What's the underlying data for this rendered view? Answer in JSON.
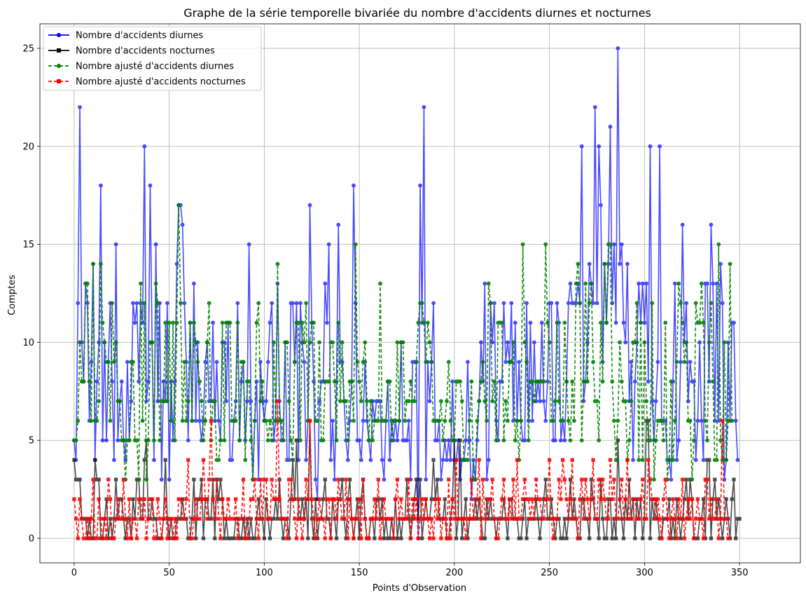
{
  "chart_data": {
    "type": "line",
    "title": "Graphe de la série temporelle bivariée du nombre d'accidents diurnes et nocturnes",
    "xlabel": "Points d'Observation",
    "ylabel": "Comptes",
    "xlim": [
      -18,
      382
    ],
    "ylim": [
      -1.25,
      26.25
    ],
    "xticks": [
      0,
      50,
      100,
      150,
      200,
      250,
      300,
      350
    ],
    "yticks": [
      0,
      5,
      10,
      15,
      20,
      25
    ],
    "grid": true,
    "legend_position": "top-left",
    "series": [
      {
        "name": "Nombre d'accidents diurnes",
        "color": "#0000ff",
        "marker": "circle",
        "dash": "solid",
        "alpha": 0.7,
        "values": [
          5,
          4,
          12,
          22,
          10,
          8,
          13,
          12,
          6,
          9,
          14,
          4,
          8,
          10,
          18,
          5,
          10,
          5,
          9,
          12,
          8,
          4,
          15,
          5,
          7,
          8,
          5,
          4,
          9,
          5,
          7,
          12,
          11,
          12,
          8,
          12,
          11,
          20,
          7,
          8,
          18,
          10,
          4,
          15,
          7,
          12,
          3,
          8,
          7,
          12,
          3,
          8,
          5,
          8,
          14,
          17,
          17,
          16,
          12,
          9,
          5,
          11,
          6,
          13,
          6,
          10,
          6,
          5,
          6,
          9,
          10,
          7,
          7,
          11,
          6,
          9,
          6,
          5,
          10,
          10,
          7,
          11,
          4,
          4,
          6,
          7,
          12,
          5,
          8,
          9,
          5,
          7,
          15,
          7,
          3,
          6,
          8,
          3,
          9,
          7,
          6,
          7,
          9,
          11,
          12,
          5,
          6,
          13,
          7,
          5,
          5,
          10,
          4,
          4,
          12,
          12,
          9,
          12,
          4,
          12,
          10,
          9,
          4,
          6,
          17,
          11,
          8,
          3,
          2,
          7,
          8,
          8,
          13,
          11,
          15,
          4,
          6,
          3,
          8,
          16,
          9,
          9,
          7,
          5,
          4,
          6,
          8,
          18,
          12,
          5,
          5,
          4,
          6,
          9,
          6,
          5,
          4,
          7,
          6,
          7,
          7,
          7,
          4,
          3,
          6,
          8,
          4,
          6,
          5,
          6,
          5,
          6,
          10,
          5,
          5,
          5,
          6,
          3,
          9,
          9,
          9,
          0,
          18,
          11,
          22,
          3,
          9,
          7,
          9,
          12,
          5,
          5,
          6,
          3,
          4,
          5,
          4,
          5,
          4,
          8,
          4,
          4,
          5,
          3,
          4,
          4,
          5,
          9,
          5,
          2,
          4,
          3,
          5,
          7,
          10,
          8,
          13,
          3,
          4,
          12,
          10,
          12,
          6,
          5,
          8,
          8,
          12,
          9,
          10,
          9,
          12,
          6,
          11,
          6,
          9,
          6,
          5,
          5,
          12,
          6,
          11,
          6,
          10,
          7,
          8,
          7,
          11,
          7,
          6,
          8,
          12,
          12,
          5,
          5,
          12,
          11,
          5,
          6,
          5,
          8,
          12,
          13,
          12,
          12,
          12,
          13,
          12,
          20,
          7,
          8,
          10,
          14,
          13,
          12,
          22,
          12,
          20,
          17,
          9,
          14,
          11,
          14,
          21,
          12,
          15,
          11,
          25,
          14,
          15,
          11,
          10,
          14,
          7,
          9,
          4,
          8,
          10,
          13,
          11,
          13,
          11,
          13,
          8,
          20,
          7,
          5,
          7,
          9,
          20,
          6,
          6,
          6,
          4,
          4,
          3,
          8,
          13,
          4,
          5,
          9,
          16,
          10,
          12,
          7,
          9,
          8,
          8,
          4,
          6,
          10,
          6,
          4,
          13,
          13,
          8,
          16,
          13,
          6,
          13,
          6,
          14,
          12,
          3,
          4,
          10,
          6,
          11,
          11,
          6,
          4
        ]
      },
      {
        "name": "Nombre d'accidents nocturnes",
        "color": "#000000",
        "marker": "square",
        "dash": "solid",
        "alpha": 0.7,
        "values": [
          4,
          3,
          3,
          3,
          1,
          1,
          1,
          0,
          1,
          0,
          0,
          4,
          3,
          3,
          0,
          0,
          1,
          2,
          0,
          1,
          0,
          1,
          3,
          1,
          2,
          2,
          1,
          0,
          1,
          1,
          0,
          2,
          1,
          3,
          3,
          1,
          1,
          4,
          5,
          1,
          1,
          2,
          1,
          1,
          0,
          0,
          0,
          1,
          4,
          1,
          0,
          1,
          0,
          0,
          1,
          1,
          1,
          2,
          1,
          1,
          0,
          0,
          1,
          3,
          0,
          2,
          2,
          3,
          0,
          2,
          2,
          1,
          1,
          3,
          0,
          3,
          2,
          3,
          2,
          0,
          1,
          0,
          0,
          0,
          0,
          1,
          1,
          0,
          0,
          1,
          0,
          1,
          0,
          1,
          0,
          0,
          1,
          2,
          1,
          1,
          0,
          2,
          1,
          0,
          1,
          1,
          2,
          1,
          3,
          1,
          0,
          1,
          1,
          0,
          2,
          4,
          2,
          5,
          1,
          1,
          2,
          1,
          2,
          0,
          6,
          1,
          0,
          2,
          0,
          1,
          1,
          2,
          3,
          1,
          1,
          0,
          2,
          1,
          0,
          2,
          2,
          3,
          1,
          0,
          2,
          3,
          1,
          0,
          1,
          2,
          0,
          2,
          3,
          1,
          0,
          0,
          1,
          1,
          0,
          2,
          2,
          1,
          2,
          0,
          1,
          0,
          0,
          1,
          0,
          2,
          0,
          1,
          0,
          1,
          1,
          3,
          1,
          0,
          1,
          2,
          3,
          1,
          3,
          0,
          1,
          2,
          1,
          1,
          2,
          4,
          2,
          3,
          1,
          1,
          1,
          2,
          0,
          0,
          1,
          2,
          5,
          0,
          1,
          5,
          0,
          1,
          2,
          0,
          1,
          1,
          1,
          2,
          1,
          2,
          1,
          0,
          0,
          2,
          1,
          2,
          1,
          1,
          0,
          1,
          1,
          1,
          2,
          1,
          0,
          2,
          2,
          1,
          1,
          1,
          0,
          0,
          1,
          2,
          0,
          1,
          1,
          1,
          1,
          2,
          1,
          0,
          1,
          2,
          3,
          1,
          1,
          2,
          1,
          0,
          1,
          1,
          0,
          0,
          1,
          0,
          1,
          3,
          1,
          2,
          1,
          0,
          0,
          2,
          2,
          1,
          1,
          0,
          3,
          2,
          1,
          1,
          0,
          3,
          1,
          0,
          0,
          2,
          2,
          0,
          1,
          0,
          5,
          2,
          1,
          0,
          2,
          1,
          3,
          1,
          2,
          0,
          2,
          1,
          2,
          0,
          1,
          6,
          6,
          0,
          2,
          1,
          2,
          1,
          0,
          0,
          1,
          1,
          1,
          2,
          0,
          1,
          0,
          2,
          1,
          0,
          1,
          2,
          3,
          1,
          3,
          2,
          0,
          0,
          0,
          1,
          1,
          2,
          0,
          4,
          4,
          0,
          2,
          3,
          1,
          2,
          1,
          0,
          1,
          2,
          1,
          0,
          2,
          3,
          0,
          1,
          1
        ]
      },
      {
        "name": "Nombre ajusté d'accidents diurnes",
        "color": "#008000",
        "marker": "circle",
        "dash": "dashed",
        "alpha": 0.9,
        "values": [
          5,
          5,
          6,
          10,
          8,
          8,
          13,
          13,
          8,
          6,
          14,
          6,
          6,
          7,
          14,
          11,
          10,
          9,
          9,
          6,
          12,
          9,
          10,
          7,
          7,
          5,
          5,
          3,
          5,
          5,
          9,
          9,
          5,
          5,
          3,
          13,
          6,
          12,
          3,
          5,
          10,
          10,
          5,
          13,
          12,
          5,
          7,
          7,
          11,
          7,
          11,
          6,
          11,
          5,
          11,
          17,
          12,
          6,
          9,
          6,
          7,
          11,
          6,
          11,
          10,
          9,
          8,
          7,
          5,
          6,
          10,
          12,
          5,
          7,
          7,
          4,
          4,
          5,
          11,
          5,
          11,
          11,
          11,
          6,
          6,
          6,
          11,
          5,
          9,
          9,
          4,
          8,
          8,
          5,
          3,
          6,
          11,
          12,
          7,
          8,
          6,
          6,
          5,
          6,
          5,
          10,
          6,
          14,
          6,
          6,
          5,
          10,
          10,
          7,
          5,
          4,
          9,
          11,
          11,
          5,
          11,
          10,
          12,
          6,
          10,
          11,
          11,
          6,
          6,
          10,
          5,
          5,
          8,
          8,
          8,
          10,
          10,
          8,
          5,
          11,
          7,
          10,
          7,
          7,
          5,
          8,
          8,
          6,
          15,
          9,
          8,
          7,
          9,
          10,
          7,
          5,
          7,
          5,
          6,
          6,
          6,
          13,
          6,
          6,
          6,
          8,
          8,
          5,
          6,
          6,
          10,
          6,
          10,
          10,
          6,
          7,
          7,
          8,
          7,
          7,
          9,
          11,
          12,
          12,
          11,
          9,
          11,
          10,
          9,
          6,
          6,
          6,
          6,
          7,
          5,
          6,
          7,
          9,
          6,
          5,
          5,
          8,
          8,
          8,
          7,
          4,
          4,
          4,
          6,
          8,
          3,
          3,
          6,
          7,
          8,
          9,
          7,
          6,
          13,
          12,
          7,
          8,
          5,
          11,
          11,
          11,
          5,
          7,
          6,
          9,
          9,
          10,
          5,
          6,
          4,
          6,
          15,
          10,
          9,
          5,
          8,
          8,
          7,
          8,
          8,
          8,
          8,
          8,
          15,
          11,
          10,
          6,
          6,
          7,
          11,
          7,
          6,
          6,
          11,
          8,
          6,
          5,
          8,
          6,
          13,
          14,
          12,
          5,
          8,
          13,
          8,
          12,
          13,
          9,
          7,
          7,
          5,
          11,
          8,
          14,
          11,
          15,
          15,
          8,
          6,
          4,
          6,
          10,
          8,
          7,
          7,
          4,
          5,
          7,
          10,
          10,
          12,
          4,
          11,
          4,
          10,
          7,
          5,
          5,
          12,
          3,
          5,
          6,
          6,
          6,
          5,
          11,
          3,
          4,
          8,
          4,
          6,
          9,
          13,
          12,
          11,
          9,
          10,
          6,
          6,
          3,
          5,
          12,
          11,
          11,
          13,
          11,
          6,
          5,
          10,
          12,
          8,
          4,
          4,
          15,
          5,
          4,
          10,
          4,
          6,
          14,
          6
        ]
      },
      {
        "name": "Nombre ajusté d'accidents nocturnes",
        "color": "#ff0000",
        "marker": "square",
        "dash": "dashed",
        "alpha": 0.9,
        "values": [
          2,
          1,
          0,
          2,
          1,
          0,
          0,
          1,
          0,
          1,
          3,
          0,
          0,
          2,
          1,
          0,
          1,
          0,
          3,
          2,
          0,
          0,
          1,
          2,
          1,
          1,
          3,
          1,
          0,
          2,
          0,
          1,
          1,
          0,
          2,
          2,
          1,
          2,
          0,
          1,
          2,
          2,
          0,
          0,
          2,
          1,
          0,
          1,
          2,
          0,
          1,
          1,
          0,
          1,
          0,
          2,
          2,
          1,
          1,
          2,
          4,
          0,
          0,
          1,
          2,
          1,
          1,
          2,
          4,
          2,
          1,
          3,
          6,
          2,
          1,
          3,
          1,
          0,
          2,
          1,
          1,
          2,
          1,
          1,
          1,
          2,
          0,
          1,
          1,
          3,
          0,
          0,
          1,
          2,
          2,
          3,
          1,
          0,
          3,
          1,
          3,
          3,
          1,
          1,
          3,
          2,
          2,
          7,
          2,
          1,
          1,
          1,
          0,
          3,
          3,
          2,
          1,
          0,
          2,
          1,
          0,
          1,
          3,
          2,
          6,
          2,
          1,
          0,
          1,
          2,
          1,
          1,
          0,
          2,
          2,
          0,
          2,
          2,
          1,
          3,
          2,
          1,
          1,
          3,
          0,
          2,
          1,
          0,
          1,
          1,
          2,
          0,
          3,
          1,
          0,
          0,
          1,
          1,
          2,
          1,
          3,
          0,
          1,
          2,
          1,
          1,
          1,
          1,
          0,
          2,
          3,
          1,
          2,
          1,
          1,
          1,
          3,
          0,
          2,
          1,
          2,
          0,
          1,
          2,
          1,
          2,
          1,
          0,
          1,
          0,
          2,
          1,
          2,
          0,
          1,
          1,
          0,
          3,
          0,
          2,
          1,
          4,
          1,
          1,
          1,
          1,
          0,
          1,
          1,
          3,
          1,
          1,
          2,
          4,
          0,
          3,
          1,
          1,
          2,
          2,
          3,
          1,
          0,
          0,
          1,
          2,
          3,
          1,
          1,
          2,
          1,
          3,
          1,
          4,
          1,
          1,
          2,
          3,
          2,
          2,
          1,
          2,
          1,
          3,
          2,
          2,
          1,
          1,
          2,
          2,
          4,
          1,
          0,
          1,
          1,
          3,
          2,
          4,
          3,
          2,
          1,
          2,
          4,
          1,
          1,
          0,
          2,
          3,
          1,
          3,
          2,
          1,
          2,
          4,
          1,
          1,
          3,
          2,
          3,
          2,
          1,
          1,
          4,
          2,
          3,
          1,
          1,
          2,
          3,
          1,
          2,
          4,
          1,
          1,
          2,
          2,
          1,
          1,
          2,
          3,
          1,
          1,
          4,
          3,
          2,
          2,
          1,
          2,
          1,
          0,
          2,
          3,
          1,
          0,
          1,
          2,
          1,
          0,
          2,
          1,
          3,
          0,
          1,
          2,
          1,
          2,
          0,
          1,
          2,
          1,
          1,
          0,
          3,
          3,
          1,
          2,
          1,
          1,
          2,
          0,
          1,
          6,
          1,
          1,
          0
        ]
      }
    ]
  }
}
